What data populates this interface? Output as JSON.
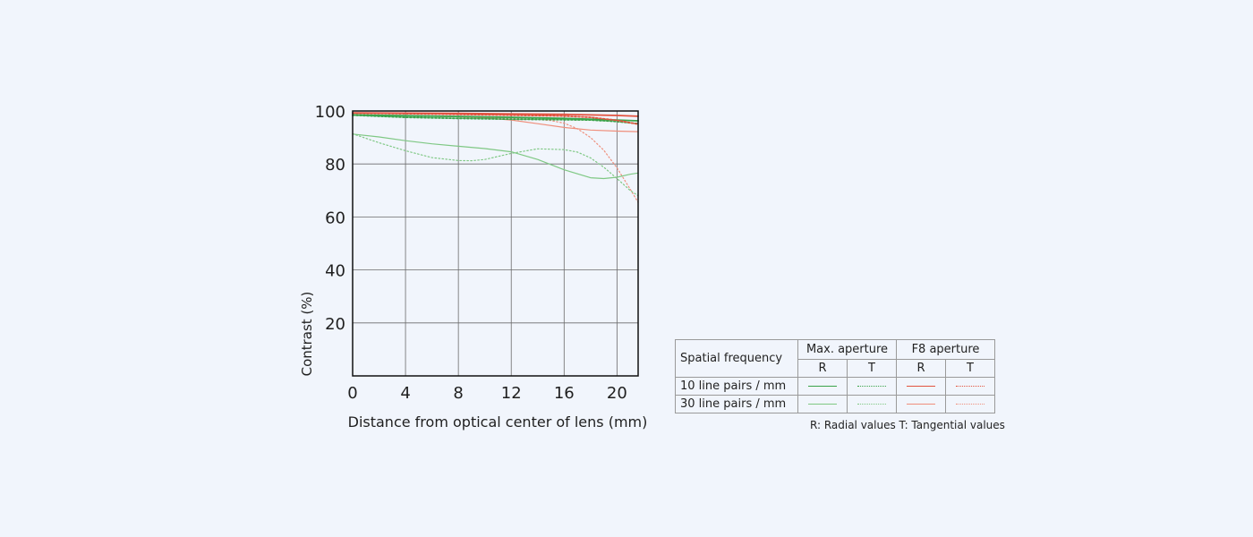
{
  "chart_data": {
    "type": "line",
    "title": "",
    "xlabel": "Distance from optical center of lens (mm)",
    "ylabel": "Contrast (%)",
    "xlim": [
      0,
      21.6
    ],
    "ylim": [
      0,
      100
    ],
    "xticks": [
      0,
      4,
      8,
      12,
      16,
      20
    ],
    "yticks": [
      20,
      40,
      60,
      80,
      100
    ],
    "grid": true,
    "colors": {
      "max_10": "#3aa34a",
      "max_30": "#7fc884",
      "f8_10": "#e2533f",
      "f8_30": "#ef8f7c"
    },
    "series": [
      {
        "name": "Max. aperture 10 line pairs / mm R",
        "key": "max_10",
        "dash": false,
        "x": [
          0,
          4,
          8,
          12,
          16,
          20,
          21.6
        ],
        "y": [
          98.5,
          98.2,
          97.9,
          97.6,
          97.2,
          96.6,
          96.3
        ]
      },
      {
        "name": "Max. aperture 10 line pairs / mm T",
        "key": "max_10",
        "dash": true,
        "x": [
          0,
          4,
          8,
          12,
          16,
          18,
          20,
          21.6
        ],
        "y": [
          98.4,
          97.6,
          97.2,
          96.9,
          96.7,
          96.6,
          96.0,
          95.2
        ]
      },
      {
        "name": "Max. aperture 30 line pairs / mm R",
        "key": "max_30",
        "dash": false,
        "x": [
          0,
          2,
          4,
          6,
          8,
          10,
          12,
          14,
          16,
          18,
          19,
          20,
          21,
          21.6
        ],
        "y": [
          91.3,
          90.2,
          88.8,
          87.6,
          86.7,
          85.8,
          84.6,
          81.7,
          77.8,
          74.8,
          74.5,
          75.0,
          76.1,
          76.6
        ]
      },
      {
        "name": "Max. aperture 30 line pairs / mm T",
        "key": "max_30",
        "dash": true,
        "x": [
          0,
          2,
          4,
          6,
          8,
          9,
          10,
          12,
          14,
          16,
          17,
          18,
          19,
          20,
          21,
          21.6
        ],
        "y": [
          91.4,
          88.0,
          85.0,
          82.4,
          81.3,
          81.2,
          81.7,
          84.0,
          85.7,
          85.4,
          84.5,
          82.3,
          78.8,
          74.5,
          70.0,
          68.0
        ]
      },
      {
        "name": "F8 aperture 10 line pairs / mm R",
        "key": "f8_10",
        "dash": false,
        "x": [
          0,
          4,
          8,
          12,
          16,
          20,
          21.6
        ],
        "y": [
          99.3,
          99.2,
          99.1,
          98.9,
          98.7,
          98.3,
          98.0
        ]
      },
      {
        "name": "F8 aperture 10 line pairs / mm T",
        "key": "f8_10",
        "dash": true,
        "x": [
          0,
          4,
          8,
          12,
          16,
          18,
          20,
          21.6
        ],
        "y": [
          99.2,
          99.0,
          98.7,
          98.4,
          98.1,
          97.6,
          96.5,
          95.0
        ]
      },
      {
        "name": "F8 aperture 30 line pairs / mm R",
        "key": "f8_30",
        "dash": false,
        "x": [
          0,
          4,
          8,
          10,
          12,
          14,
          16,
          18,
          20,
          21.6
        ],
        "y": [
          98.5,
          98.2,
          97.8,
          97.4,
          96.6,
          95.2,
          93.8,
          92.8,
          92.4,
          92.2
        ]
      },
      {
        "name": "F8 aperture 30 line pairs / mm T",
        "key": "f8_30",
        "dash": true,
        "x": [
          0,
          4,
          8,
          10,
          12,
          14,
          15,
          16,
          17,
          18,
          19,
          20,
          21,
          21.6
        ],
        "y": [
          98.6,
          98.3,
          97.9,
          97.6,
          97.2,
          96.8,
          96.4,
          95.4,
          93.3,
          90.0,
          85.2,
          78.5,
          70.5,
          65.5
        ]
      }
    ]
  },
  "legend": {
    "header_label": "Spatial frequency",
    "groups": [
      "Max. aperture",
      "F8 aperture"
    ],
    "sub_labels": [
      "R",
      "T",
      "R",
      "T"
    ],
    "rows": [
      "10 line pairs / mm",
      "30 line pairs / mm"
    ],
    "note": "R: Radial values  T: Tangential values"
  }
}
